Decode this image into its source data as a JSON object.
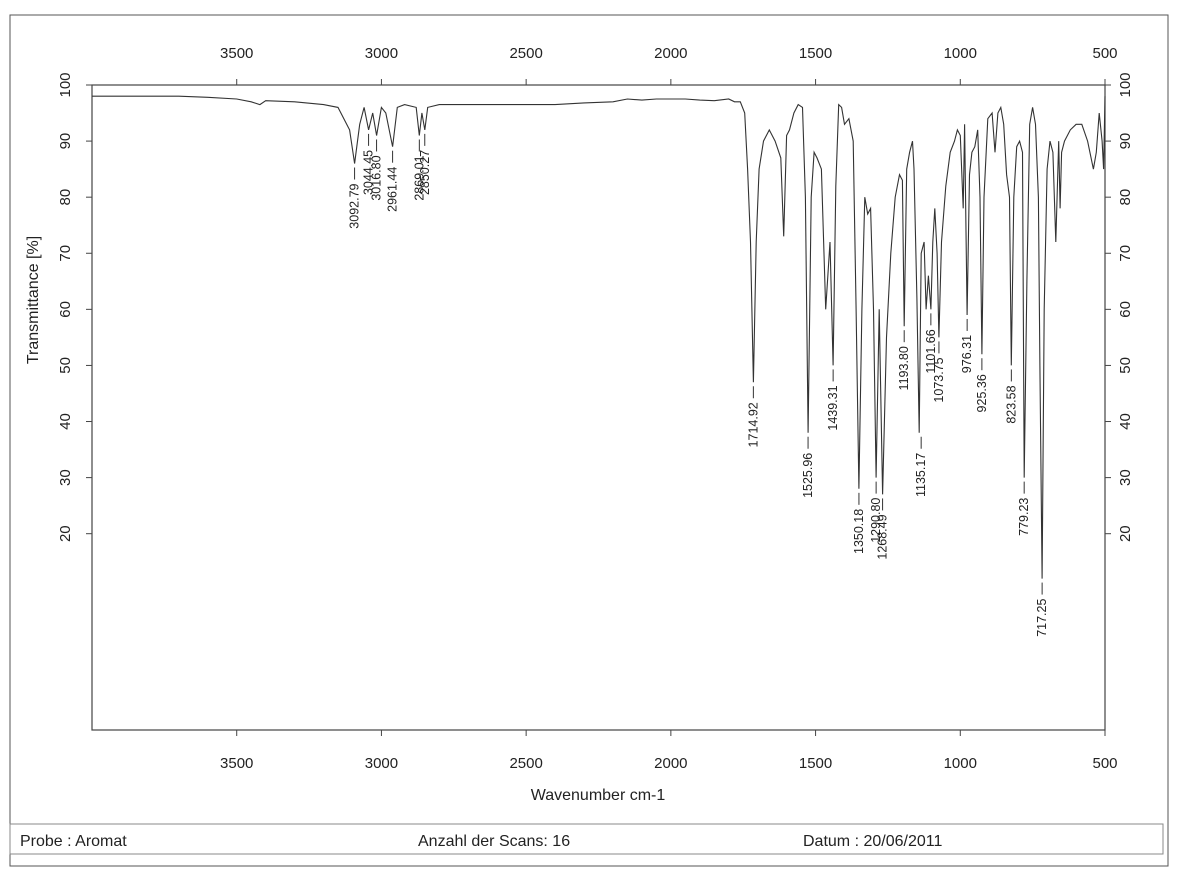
{
  "footer": {
    "sample": "Probe : Aromat",
    "scans": "Anzahl der Scans: 16",
    "date": "Datum : 20/06/2011"
  },
  "chart_data": {
    "type": "line",
    "title": "",
    "xlabel": "Wavenumber cm-1",
    "ylabel": "Transmittance [%]",
    "xlim": [
      4000,
      500
    ],
    "ylim": [
      -15,
      100
    ],
    "x_ticks": [
      3500,
      3000,
      2500,
      2000,
      1500,
      1000,
      500
    ],
    "y_ticks": [
      20,
      30,
      40,
      50,
      60,
      70,
      80,
      90,
      100
    ],
    "line_color": "#333333",
    "series": [
      {
        "x": [
          4000,
          3800,
          3700,
          3600,
          3500,
          3450,
          3420,
          3400,
          3300,
          3200,
          3150,
          3110,
          3092.79,
          3075,
          3060,
          3044.45,
          3030,
          3016.8,
          3000,
          2985,
          2961.44,
          2945,
          2920,
          2880,
          2869.01,
          2860,
          2850.27,
          2840,
          2800,
          2700,
          2600,
          2500,
          2400,
          2300,
          2200,
          2150,
          2100,
          2050,
          2000,
          1950,
          1900,
          1850,
          1800,
          1780,
          1760,
          1745,
          1735,
          1725,
          1714.92,
          1705,
          1695,
          1680,
          1660,
          1640,
          1620,
          1610,
          1600,
          1590,
          1575,
          1560,
          1545,
          1535,
          1525.96,
          1515,
          1505,
          1495,
          1480,
          1465,
          1450,
          1439.31,
          1430,
          1420,
          1410,
          1400,
          1385,
          1370,
          1360,
          1350.18,
          1340,
          1330,
          1320,
          1310,
          1300,
          1290.8,
          1280,
          1268.49,
          1255,
          1240,
          1225,
          1210,
          1200,
          1193.8,
          1185,
          1175,
          1165,
          1160,
          1150,
          1142,
          1135.17,
          1125,
          1118,
          1110,
          1101.66,
          1095,
          1088,
          1080,
          1073.75,
          1065,
          1050,
          1035,
          1020,
          1010,
          1000,
          990,
          985,
          976.31,
          968,
          960,
          950,
          940,
          932,
          925.36,
          918,
          905,
          890,
          880,
          870,
          860,
          850,
          840,
          830,
          823.58,
          815,
          805,
          795,
          785,
          779.23,
          770,
          760,
          750,
          740,
          730,
          725,
          717.25,
          710,
          700,
          690,
          680,
          670,
          660,
          655,
          650,
          640,
          620,
          600,
          580,
          560,
          540,
          530,
          520,
          510,
          505,
          500
        ],
        "y": [
          98,
          98,
          98,
          97.8,
          97.5,
          97,
          96.5,
          97.2,
          97,
          96.5,
          96,
          92,
          86,
          93,
          96,
          92,
          95,
          91,
          96,
          95,
          89,
          96,
          96.5,
          96,
          91,
          95,
          92,
          96,
          96.5,
          96.5,
          96.5,
          96.5,
          96.5,
          96.8,
          97,
          97.5,
          97.3,
          97.5,
          97.5,
          97.5,
          97.3,
          97.2,
          97.5,
          97,
          97,
          95,
          85,
          72,
          47,
          72,
          85,
          90,
          92,
          90,
          87,
          73,
          91,
          92,
          95,
          96.5,
          96,
          80,
          38,
          80,
          88,
          87,
          85,
          60,
          72,
          50,
          82,
          96.5,
          96,
          93,
          94,
          90,
          60,
          28,
          60,
          80,
          77,
          78,
          60,
          30,
          60,
          27,
          55,
          70,
          80,
          84,
          83,
          57,
          85,
          88,
          90,
          85,
          62,
          38,
          70,
          72,
          60,
          66,
          60,
          72,
          78,
          70,
          55,
          72,
          82,
          88,
          90,
          92,
          91,
          78,
          93,
          59,
          84,
          88,
          89,
          92,
          80,
          52,
          80,
          94,
          95,
          88,
          95,
          96,
          93,
          84,
          80,
          50,
          80,
          89,
          90,
          88,
          30,
          65,
          93,
          96,
          93,
          80,
          50,
          12,
          60,
          85,
          90,
          88,
          72,
          90,
          78,
          88,
          90,
          92,
          93,
          93,
          90,
          85,
          88,
          95,
          90,
          85,
          98
        ]
      }
    ],
    "peak_labels": [
      {
        "x": 3092.79,
        "label": "3092.79",
        "y": 86
      },
      {
        "x": 3044.45,
        "label": "3044.45",
        "y": 92
      },
      {
        "x": 3016.8,
        "label": "3016.80",
        "y": 91
      },
      {
        "x": 2961.44,
        "label": "2961.44",
        "y": 89
      },
      {
        "x": 2869.01,
        "label": "2869.01",
        "y": 91
      },
      {
        "x": 2850.27,
        "label": "2850.27",
        "y": 92
      },
      {
        "x": 1714.92,
        "label": "1714.92",
        "y": 47
      },
      {
        "x": 1525.96,
        "label": "1525.96",
        "y": 38
      },
      {
        "x": 1439.31,
        "label": "1439.31",
        "y": 50
      },
      {
        "x": 1350.18,
        "label": "1350.18",
        "y": 28
      },
      {
        "x": 1290.8,
        "label": "1290.80",
        "y": 30
      },
      {
        "x": 1268.49,
        "label": "1268.49",
        "y": 27
      },
      {
        "x": 1193.8,
        "label": "1193.80",
        "y": 57
      },
      {
        "x": 1135.17,
        "label": "1135.17",
        "y": 38
      },
      {
        "x": 1101.66,
        "label": "1101.66",
        "y": 60
      },
      {
        "x": 1073.75,
        "label": "1073.75",
        "y": 55
      },
      {
        "x": 976.31,
        "label": "976.31",
        "y": 59
      },
      {
        "x": 925.36,
        "label": "925.36",
        "y": 52
      },
      {
        "x": 823.58,
        "label": "823.58",
        "y": 50
      },
      {
        "x": 779.23,
        "label": "779.23",
        "y": 30
      },
      {
        "x": 717.25,
        "label": "717.25",
        "y": 12
      }
    ]
  }
}
